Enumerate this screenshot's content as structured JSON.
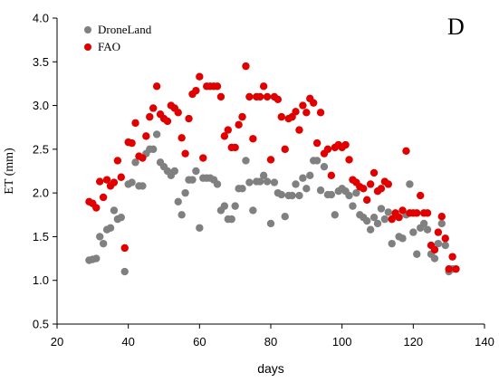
{
  "chart_data": {
    "type": "scatter",
    "panel_label": "D",
    "xlabel": "days",
    "ylabel": "ET (mm)",
    "xlim": [
      20,
      140
    ],
    "ylim": [
      0.5,
      4.0
    ],
    "xticks": [
      "20",
      "40",
      "60",
      "80",
      "100",
      "120",
      "140"
    ],
    "yticks": [
      "0.5",
      "1.0",
      "1.5",
      "2.0",
      "2.5",
      "3.0",
      "3.5",
      "4.0"
    ],
    "legend_position": "top-left",
    "grid": false,
    "series": [
      {
        "name": "DroneLand",
        "color": "#808080",
        "points": [
          [
            29,
            1.23
          ],
          [
            30,
            1.24
          ],
          [
            31,
            1.25
          ],
          [
            32,
            1.5
          ],
          [
            33,
            1.42
          ],
          [
            34,
            1.58
          ],
          [
            35,
            1.6
          ],
          [
            36,
            1.8
          ],
          [
            37,
            1.7
          ],
          [
            38,
            1.72
          ],
          [
            39,
            1.1
          ],
          [
            40,
            2.1
          ],
          [
            41,
            2.12
          ],
          [
            42,
            2.35
          ],
          [
            43,
            2.08
          ],
          [
            44,
            2.08
          ],
          [
            45,
            2.45
          ],
          [
            46,
            2.5
          ],
          [
            47,
            2.5
          ],
          [
            48,
            2.67
          ],
          [
            49,
            2.35
          ],
          [
            50,
            2.3
          ],
          [
            51,
            2.25
          ],
          [
            52,
            2.2
          ],
          [
            53,
            2.25
          ],
          [
            54,
            1.9
          ],
          [
            55,
            1.75
          ],
          [
            56,
            2.0
          ],
          [
            57,
            2.15
          ],
          [
            58,
            2.15
          ],
          [
            59,
            2.25
          ],
          [
            60,
            1.6
          ],
          [
            61,
            2.17
          ],
          [
            62,
            2.17
          ],
          [
            63,
            2.17
          ],
          [
            64,
            2.15
          ],
          [
            65,
            2.1
          ],
          [
            66,
            1.8
          ],
          [
            67,
            1.85
          ],
          [
            68,
            1.7
          ],
          [
            69,
            1.7
          ],
          [
            70,
            1.85
          ],
          [
            71,
            2.05
          ],
          [
            72,
            2.05
          ],
          [
            73,
            2.37
          ],
          [
            74,
            2.12
          ],
          [
            75,
            1.8
          ],
          [
            76,
            2.13
          ],
          [
            77,
            2.13
          ],
          [
            78,
            2.2
          ],
          [
            79,
            2.13
          ],
          [
            80,
            1.65
          ],
          [
            81,
            2.12
          ],
          [
            82,
            2.0
          ],
          [
            83,
            1.98
          ],
          [
            84,
            1.73
          ],
          [
            85,
            1.97
          ],
          [
            86,
            1.97
          ],
          [
            87,
            2.1
          ],
          [
            88,
            1.97
          ],
          [
            89,
            2.17
          ],
          [
            90,
            2.05
          ],
          [
            91,
            2.2
          ],
          [
            92,
            2.37
          ],
          [
            93,
            2.37
          ],
          [
            94,
            2.03
          ],
          [
            95,
            2.3
          ],
          [
            96,
            1.98
          ],
          [
            97,
            1.98
          ],
          [
            98,
            1.75
          ],
          [
            99,
            2.02
          ],
          [
            100,
            2.05
          ],
          [
            101,
            2.02
          ],
          [
            102,
            1.97
          ],
          [
            103,
            1.85
          ],
          [
            104,
            2.0
          ],
          [
            105,
            1.75
          ],
          [
            106,
            1.72
          ],
          [
            107,
            1.68
          ],
          [
            108,
            1.58
          ],
          [
            109,
            1.72
          ],
          [
            110,
            1.65
          ],
          [
            111,
            1.82
          ],
          [
            112,
            1.7
          ],
          [
            113,
            1.78
          ],
          [
            114,
            1.42
          ],
          [
            115,
            1.75
          ],
          [
            116,
            1.5
          ],
          [
            117,
            1.48
          ],
          [
            118,
            1.75
          ],
          [
            119,
            2.1
          ],
          [
            120,
            1.55
          ],
          [
            121,
            1.3
          ],
          [
            122,
            1.6
          ],
          [
            123,
            1.65
          ],
          [
            124,
            1.58
          ],
          [
            125,
            1.3
          ],
          [
            126,
            1.25
          ],
          [
            127,
            1.42
          ],
          [
            128,
            1.65
          ],
          [
            129,
            1.4
          ],
          [
            130,
            1.1
          ],
          [
            131,
            1.13
          ]
        ]
      },
      {
        "name": "FAO",
        "color": "#e00000",
        "points": [
          [
            29,
            1.9
          ],
          [
            30,
            1.88
          ],
          [
            31,
            1.83
          ],
          [
            32,
            2.13
          ],
          [
            33,
            1.95
          ],
          [
            34,
            2.15
          ],
          [
            35,
            2.08
          ],
          [
            36,
            2.12
          ],
          [
            37,
            2.37
          ],
          [
            38,
            2.18
          ],
          [
            39,
            1.37
          ],
          [
            40,
            2.58
          ],
          [
            41,
            2.57
          ],
          [
            42,
            2.8
          ],
          [
            43,
            2.42
          ],
          [
            44,
            2.4
          ],
          [
            45,
            2.65
          ],
          [
            46,
            2.87
          ],
          [
            47,
            2.97
          ],
          [
            48,
            3.22
          ],
          [
            49,
            2.9
          ],
          [
            50,
            2.85
          ],
          [
            51,
            2.82
          ],
          [
            52,
            3.0
          ],
          [
            53,
            2.97
          ],
          [
            54,
            2.92
          ],
          [
            55,
            2.63
          ],
          [
            56,
            2.45
          ],
          [
            57,
            2.85
          ],
          [
            58,
            3.13
          ],
          [
            59,
            3.17
          ],
          [
            60,
            3.33
          ],
          [
            61,
            2.4
          ],
          [
            62,
            3.22
          ],
          [
            63,
            3.22
          ],
          [
            64,
            3.22
          ],
          [
            65,
            3.22
          ],
          [
            66,
            3.1
          ],
          [
            67,
            2.65
          ],
          [
            68,
            2.72
          ],
          [
            69,
            2.52
          ],
          [
            70,
            2.52
          ],
          [
            71,
            2.78
          ],
          [
            72,
            2.87
          ],
          [
            73,
            3.45
          ],
          [
            74,
            3.1
          ],
          [
            75,
            2.62
          ],
          [
            76,
            3.1
          ],
          [
            77,
            3.1
          ],
          [
            78,
            3.22
          ],
          [
            79,
            3.1
          ],
          [
            80,
            2.38
          ],
          [
            81,
            3.1
          ],
          [
            82,
            3.07
          ],
          [
            83,
            2.87
          ],
          [
            84,
            2.5
          ],
          [
            85,
            2.85
          ],
          [
            86,
            2.87
          ],
          [
            87,
            2.93
          ],
          [
            88,
            2.72
          ],
          [
            89,
            3.0
          ],
          [
            90,
            2.92
          ],
          [
            91,
            3.08
          ],
          [
            92,
            3.03
          ],
          [
            93,
            2.57
          ],
          [
            94,
            2.92
          ],
          [
            95,
            2.45
          ],
          [
            96,
            2.5
          ],
          [
            97,
            2.2
          ],
          [
            98,
            2.52
          ],
          [
            99,
            2.55
          ],
          [
            100,
            2.52
          ],
          [
            101,
            2.55
          ],
          [
            102,
            2.38
          ],
          [
            103,
            2.15
          ],
          [
            104,
            2.12
          ],
          [
            105,
            2.07
          ],
          [
            106,
            2.05
          ],
          [
            107,
            1.92
          ],
          [
            108,
            2.1
          ],
          [
            109,
            2.23
          ],
          [
            110,
            2.02
          ],
          [
            111,
            2.05
          ],
          [
            112,
            2.13
          ],
          [
            113,
            2.1
          ],
          [
            114,
            1.7
          ],
          [
            115,
            1.77
          ],
          [
            116,
            1.72
          ],
          [
            117,
            1.8
          ],
          [
            118,
            2.48
          ],
          [
            119,
            1.77
          ],
          [
            120,
            1.77
          ],
          [
            121,
            1.77
          ],
          [
            122,
            1.97
          ],
          [
            123,
            1.77
          ],
          [
            124,
            1.77
          ],
          [
            125,
            1.4
          ],
          [
            126,
            1.35
          ],
          [
            127,
            1.55
          ],
          [
            128,
            1.73
          ],
          [
            129,
            1.48
          ],
          [
            130,
            1.13
          ],
          [
            131,
            1.27
          ],
          [
            132,
            1.13
          ]
        ]
      }
    ]
  }
}
